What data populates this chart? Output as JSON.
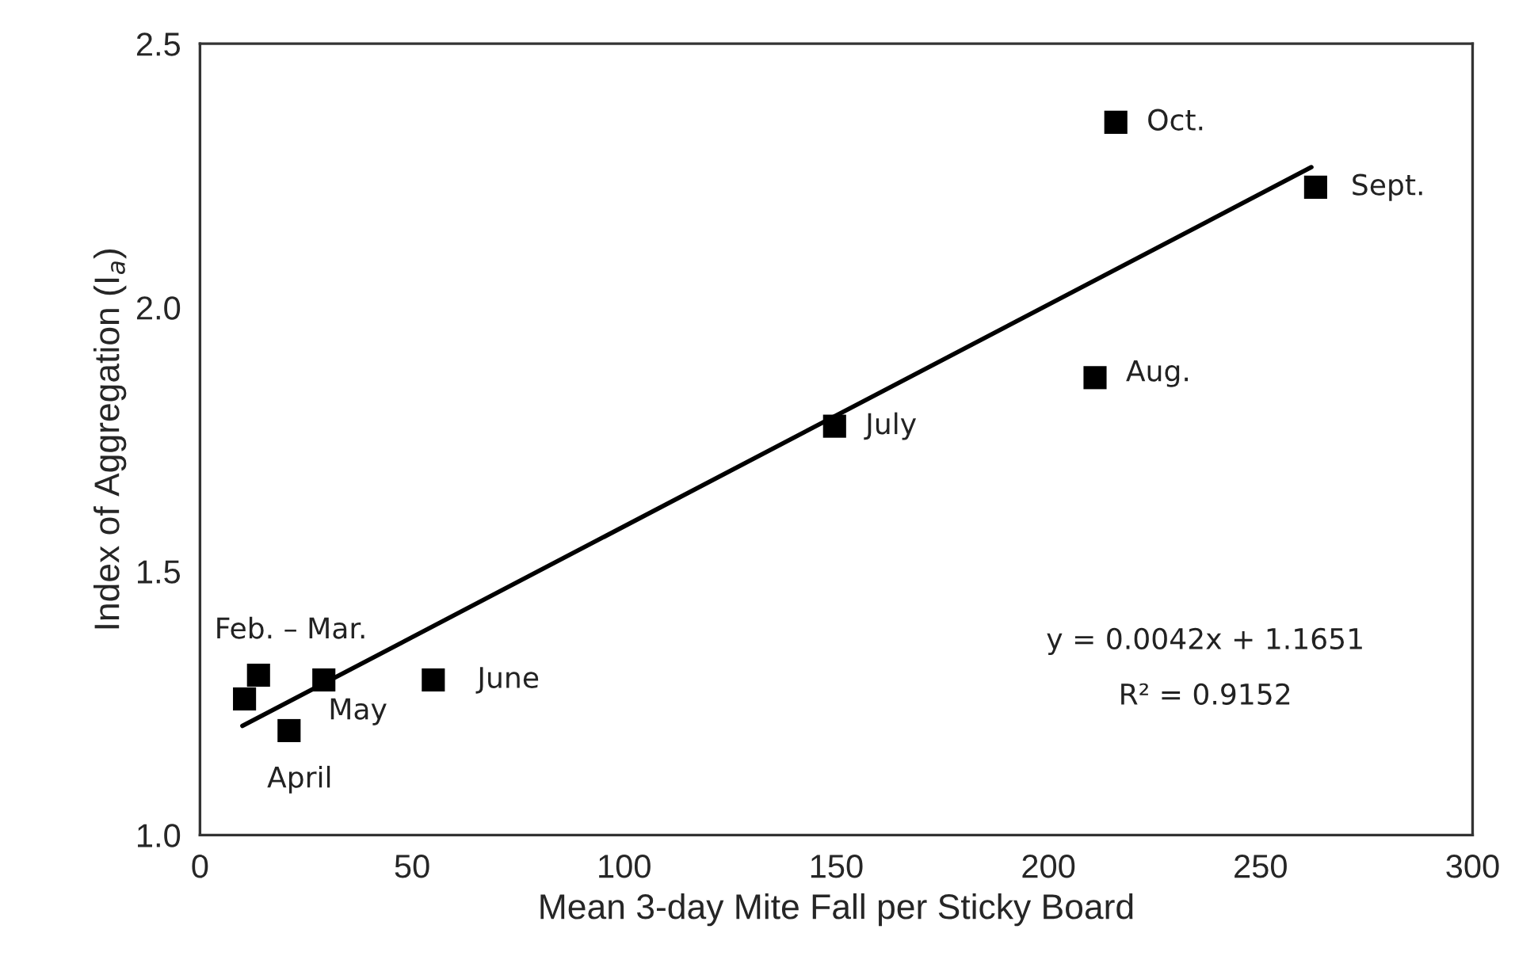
{
  "chart_data": {
    "type": "scatter",
    "xlabel": "Mean 3-day Mite Fall per Sticky Board",
    "ylabel": "Index of Aggregation (I$_{a}$)",
    "xlim": [
      0,
      300
    ],
    "xticks": [
      0,
      50,
      100,
      150,
      200,
      250,
      300
    ],
    "ylim": [
      1.0,
      2.5
    ],
    "yticks": [
      {
        "value": 1.0,
        "label": "1.0"
      },
      {
        "value": 1.5,
        "label": "1.5"
      },
      {
        "value": 2.0,
        "label": "2.0"
      },
      {
        "value": 2.5,
        "label": "2.5"
      }
    ],
    "grid": false,
    "legend": false,
    "series": [
      {
        "marker": "square",
        "color": "#000000",
        "x": [
          10.5,
          13.8,
          21.0,
          29.2,
          55.0,
          149.6,
          211.0,
          263.0,
          215.9
        ],
        "values": [
          1.258,
          1.303,
          1.198,
          1.294,
          1.294,
          1.775,
          1.867,
          2.228,
          2.351
        ]
      },
      {
        "type": "line",
        "marker": "none",
        "color": "#000000",
        "line_style": "solid",
        "x": [
          10,
          262
        ],
        "values": [
          1.207,
          2.266
        ]
      }
    ],
    "annotations": [
      {
        "text": "Feb. – Mar.",
        "x": 13.8,
        "y": 1.303
      },
      {
        "text": "April",
        "x": 21.0,
        "y": 1.198
      },
      {
        "text": "May",
        "x": 29.2,
        "y": 1.294
      },
      {
        "text": "June",
        "x": 55.0,
        "y": 1.294
      },
      {
        "text": "July",
        "x": 149.6,
        "y": 1.775
      },
      {
        "text": "Aug.",
        "x": 211.0,
        "y": 1.867
      },
      {
        "text": "Sept.",
        "x": 263.0,
        "y": 2.228
      },
      {
        "text": "Oct.",
        "x": 215.9,
        "y": 2.351
      },
      "y = 0.0042x + 1.1651",
      "R² = 0.9152"
    ]
  }
}
